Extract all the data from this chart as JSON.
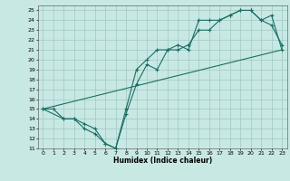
{
  "xlabel": "Humidex (Indice chaleur)",
  "xlim": [
    -0.5,
    23.5
  ],
  "ylim": [
    11,
    25.5
  ],
  "yticks": [
    11,
    12,
    13,
    14,
    15,
    16,
    17,
    18,
    19,
    20,
    21,
    22,
    23,
    24,
    25
  ],
  "xticks": [
    0,
    1,
    2,
    3,
    4,
    5,
    6,
    7,
    8,
    9,
    10,
    11,
    12,
    13,
    14,
    15,
    16,
    17,
    18,
    19,
    20,
    21,
    22,
    23
  ],
  "bg_color": "#c8e8e4",
  "line_color": "#1a6e64",
  "grid_color": "#a0c8c4",
  "line1": {
    "x": [
      0,
      1,
      2,
      3,
      4,
      5,
      6,
      7,
      8,
      9,
      10,
      11,
      12,
      13,
      14,
      15,
      16,
      17,
      18,
      19,
      20,
      21,
      22,
      23
    ],
    "y": [
      15,
      15,
      14,
      14,
      13.5,
      13,
      11.5,
      11,
      14.5,
      17.5,
      19.5,
      19,
      21,
      21,
      21.5,
      23,
      23,
      24,
      24.5,
      25,
      25,
      24,
      23.5,
      21.5
    ]
  },
  "line2": {
    "x": [
      0,
      2,
      3,
      4,
      5,
      6,
      7,
      8,
      9,
      10,
      11,
      12,
      13,
      14,
      15,
      16,
      17,
      18,
      19,
      20,
      21,
      22,
      23
    ],
    "y": [
      15,
      14,
      14,
      13,
      12.5,
      11.5,
      11,
      15,
      19,
      20,
      21,
      21,
      21.5,
      21,
      24,
      24,
      24,
      24.5,
      25,
      25,
      24,
      24.5,
      21
    ]
  },
  "line3": {
    "x": [
      0,
      23
    ],
    "y": [
      15,
      21
    ]
  }
}
